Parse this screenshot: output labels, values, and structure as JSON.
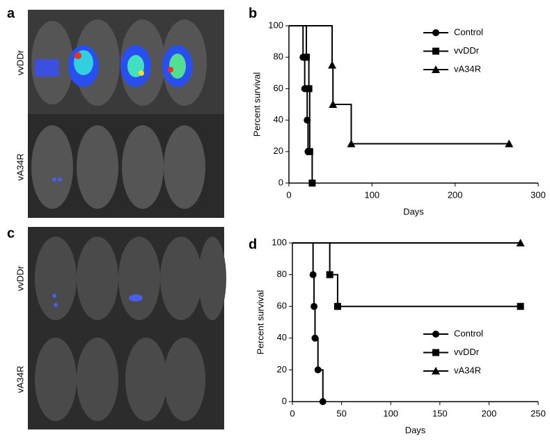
{
  "panels": {
    "a": {
      "label": "a",
      "rows": [
        "vvDDr",
        "vA34R"
      ]
    },
    "c": {
      "label": "c",
      "rows": [
        "vvDDr",
        "vA34R"
      ]
    }
  },
  "chart_data": [
    {
      "type": "line",
      "panel_label": "b",
      "x_label": "Days",
      "y_label": "Percent survival",
      "xlim": [
        0,
        300
      ],
      "xticks": [
        0,
        100,
        200,
        300
      ],
      "ylim": [
        0,
        100
      ],
      "yticks": [
        0,
        20,
        40,
        60,
        80,
        100
      ],
      "legend_position": "upper right",
      "series": [
        {
          "name": "Control",
          "color": "#000000",
          "marker": "circle",
          "x": [
            0,
            17,
            19,
            22,
            23
          ],
          "values": [
            100,
            80,
            60,
            40,
            20
          ]
        },
        {
          "name": "vvDDr",
          "color": "#000000",
          "marker": "square",
          "x": [
            0,
            21,
            24,
            25,
            28
          ],
          "values": [
            100,
            80,
            60,
            20,
            0
          ]
        },
        {
          "name": "vA34R",
          "color": "#000000",
          "marker": "triangle",
          "x": [
            0,
            52,
            53,
            75,
            265
          ],
          "values": [
            100,
            75,
            50,
            25,
            25
          ]
        }
      ]
    },
    {
      "type": "line",
      "panel_label": "d",
      "x_label": "Days",
      "y_label": "Percent survival",
      "xlim": [
        0,
        250
      ],
      "xticks": [
        0,
        50,
        100,
        150,
        200,
        250
      ],
      "ylim": [
        0,
        100
      ],
      "yticks": [
        0,
        20,
        40,
        60,
        80,
        100
      ],
      "legend_position": "lower right",
      "series": [
        {
          "name": "Control",
          "color": "#000000",
          "marker": "circle",
          "x": [
            0,
            21,
            22,
            23,
            26,
            31
          ],
          "values": [
            100,
            80,
            60,
            40,
            20,
            0
          ]
        },
        {
          "name": "vvDDr",
          "color": "#000000",
          "marker": "square",
          "x": [
            0,
            38,
            46,
            232
          ],
          "values": [
            100,
            80,
            60,
            60
          ]
        },
        {
          "name": "vA34R",
          "color": "#000000",
          "marker": "triangle",
          "x": [
            0,
            232
          ],
          "values": [
            100,
            100
          ]
        }
      ]
    }
  ]
}
